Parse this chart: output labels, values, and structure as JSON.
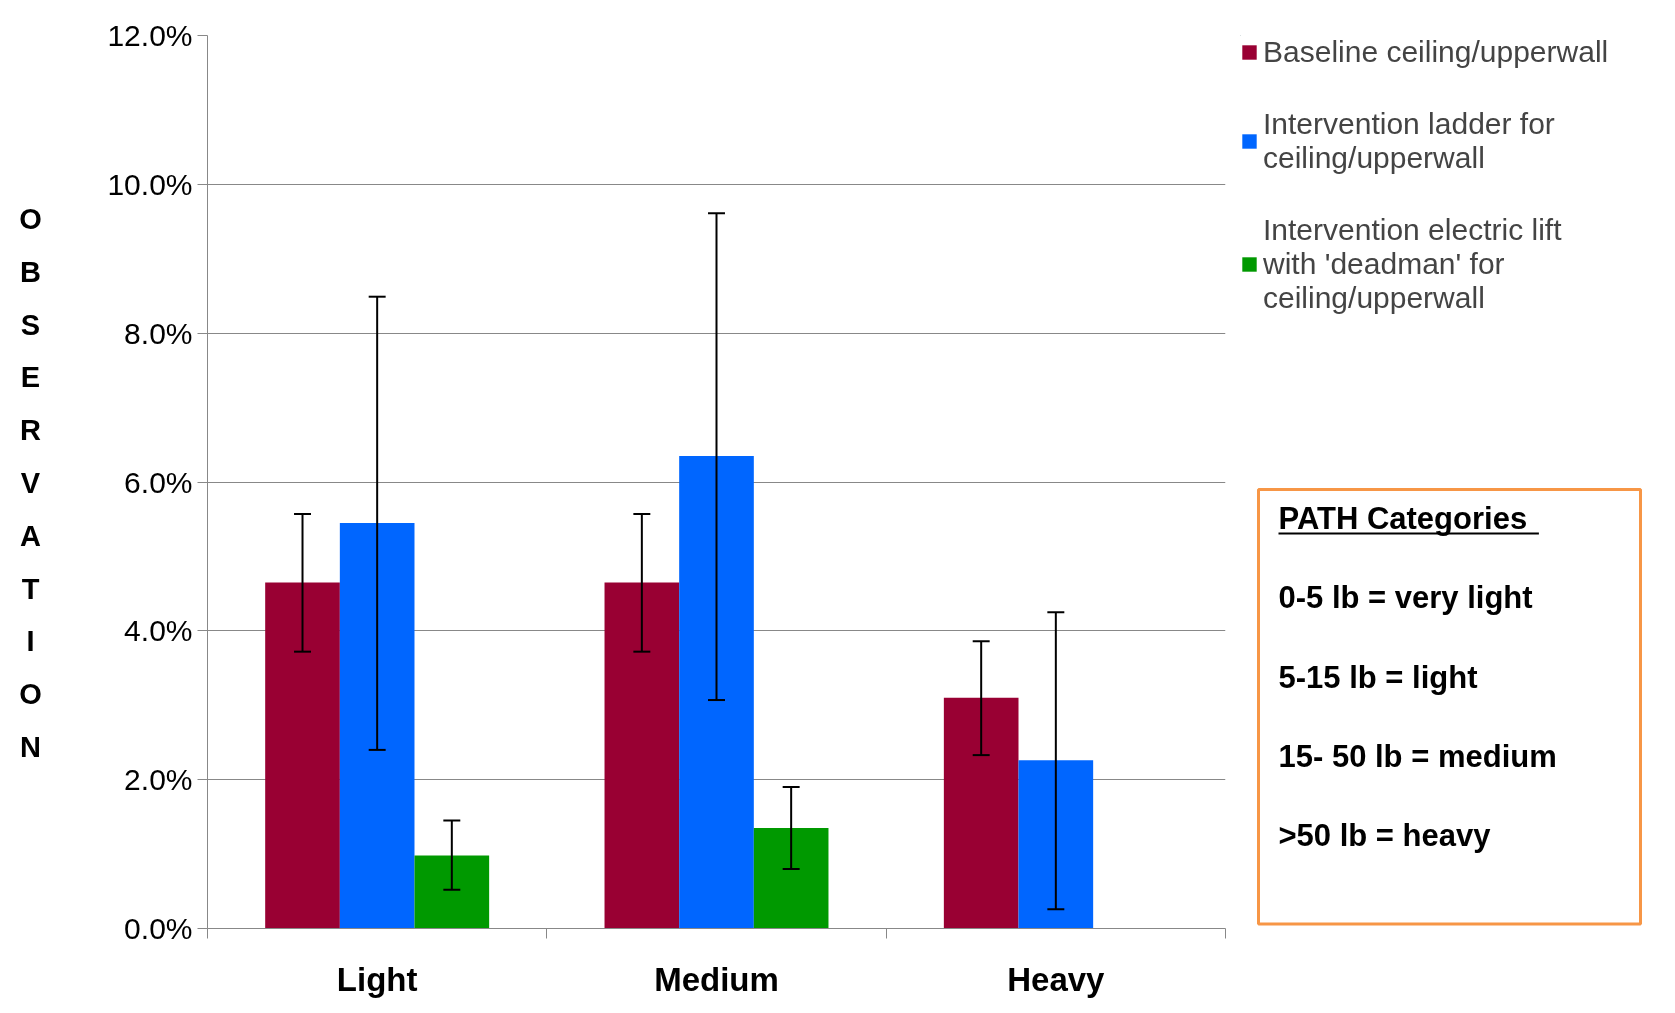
{
  "chart_data": {
    "type": "bar",
    "categories": [
      "Light",
      "Medium",
      "Heavy"
    ],
    "ylabel": "OBSERVATION",
    "series": [
      {
        "name": "Baseline ceiling/upperwall",
        "color": "#990033",
        "values": [
          4.65,
          4.65,
          3.1
        ],
        "errors": [
          [
            3.72,
            5.57
          ],
          [
            3.72,
            5.57
          ],
          [
            2.33,
            3.86
          ]
        ]
      },
      {
        "name": "Intervention ladder for ceiling/upperwall",
        "color": "#0066ff",
        "values": [
          5.45,
          6.35,
          2.26
        ],
        "errors": [
          [
            2.4,
            8.49
          ],
          [
            3.07,
            9.61
          ],
          [
            0.26,
            4.25
          ]
        ]
      },
      {
        "name": "Intervention electric lift with 'deadman' for ceiling/upperwall",
        "color": "#009900",
        "values": [
          0.98,
          1.35,
          null
        ],
        "errors": [
          [
            0.52,
            1.45
          ],
          [
            0.8,
            1.9
          ],
          null
        ]
      }
    ],
    "ylim": [
      0,
      12
    ],
    "yticks": [
      {
        "value": 0,
        "label": "0.0%"
      },
      {
        "value": 2,
        "label": "2.0%"
      },
      {
        "value": 4,
        "label": "4.0%"
      },
      {
        "value": 6,
        "label": "6.0%"
      },
      {
        "value": 8,
        "label": "8.0%"
      },
      {
        "value": 10,
        "label": "10.0%"
      },
      {
        "value": 12,
        "label": "12.0%"
      }
    ],
    "grid": "y",
    "legend": "right",
    "annotations": [
      "PATH Categories",
      "0-5 lb = very light",
      "5-15 lb = light",
      "15- 50 lb = medium",
      ">50 lb = heavy"
    ]
  }
}
